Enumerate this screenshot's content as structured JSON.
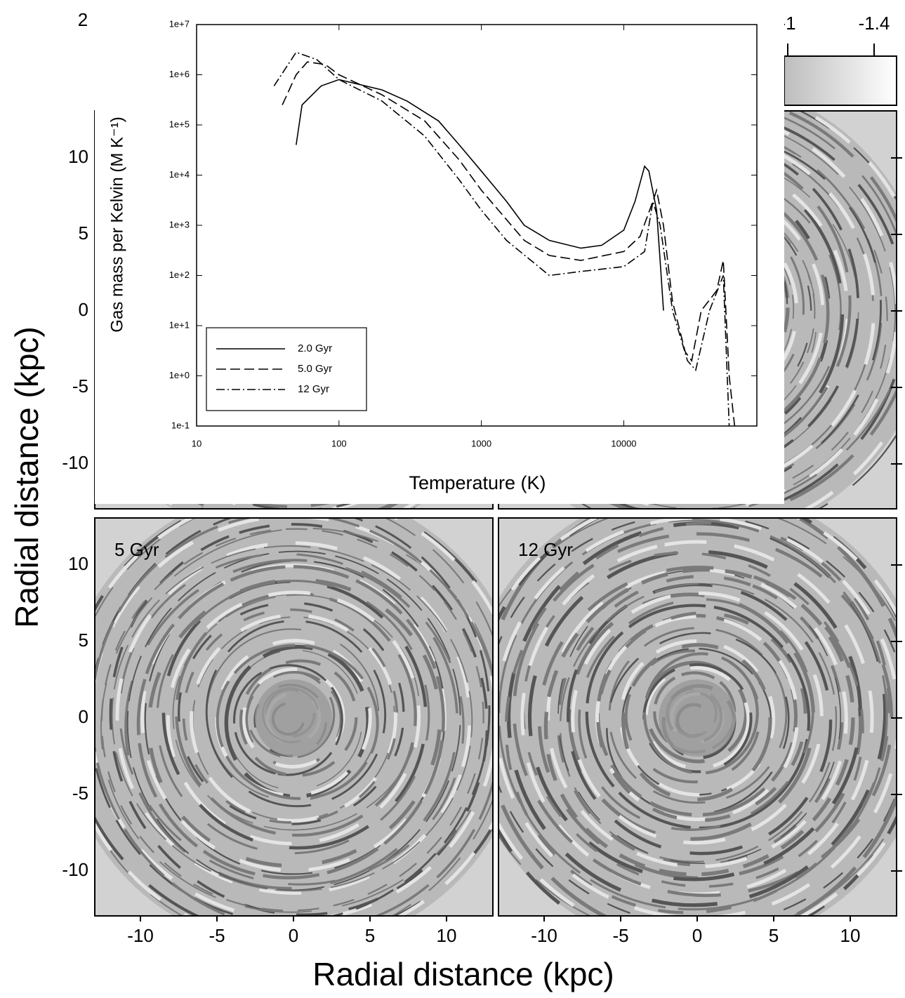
{
  "chart_data": {
    "type": "line",
    "x_label": "Temperature (K)",
    "y_label": "Gas mass per Kelvin (M  K⁻¹)",
    "log_x": true,
    "log_y": true,
    "xlim": [
      10,
      86000
    ],
    "xticks": [
      10,
      100,
      1000,
      10000
    ],
    "ylim": [
      0.1,
      10000000
    ],
    "yticks": [
      {
        "value": 0.1,
        "label": "1e-1"
      },
      {
        "value": 1,
        "label": "1e+0"
      },
      {
        "value": 10,
        "label": "1e+1"
      },
      {
        "value": 100,
        "label": "1e+2"
      },
      {
        "value": 1000,
        "label": "1e+3"
      },
      {
        "value": 10000,
        "label": "1e+4"
      },
      {
        "value": 100000,
        "label": "1e+5"
      },
      {
        "value": 1000000,
        "label": "1e+6"
      },
      {
        "value": 10000000,
        "label": "1e+7"
      }
    ],
    "legend": "lower left",
    "series": [
      {
        "name": "2.0 Gyr",
        "color": "#000000",
        "line_style": "solid",
        "x": [
          50,
          55,
          75,
          100,
          200,
          300,
          500,
          700,
          1000,
          1500,
          2000,
          3000,
          5000,
          7000,
          10000,
          12000,
          14000,
          15000,
          17000,
          18000,
          19000
        ],
        "values": [
          40000,
          250000,
          600000,
          800000,
          500000,
          300000,
          120000,
          40000,
          12000,
          3000,
          1000,
          500,
          350,
          400,
          800,
          3000,
          15000,
          12000,
          2000,
          200,
          20
        ]
      },
      {
        "name": "5.0 Gyr",
        "color": "#000000",
        "line_style": "dashed",
        "x": [
          40,
          50,
          60,
          80,
          100,
          200,
          400,
          700,
          1000,
          2000,
          3000,
          5000,
          10000,
          13000,
          16000,
          17000,
          19000,
          22000,
          27000,
          30000,
          35000,
          45000,
          50000,
          55000,
          60000
        ],
        "values": [
          250000,
          1000000,
          1800000,
          1600000,
          1000000,
          400000,
          120000,
          20000,
          5000,
          500,
          250,
          200,
          300,
          600,
          3000,
          5000,
          1000,
          30,
          3,
          2,
          20,
          50,
          200,
          1,
          0.1
        ]
      },
      {
        "name": "12 Gyr",
        "color": "#000000",
        "line_style": "dashdot",
        "x": [
          35,
          50,
          70,
          100,
          200,
          400,
          700,
          1000,
          1500,
          3000,
          5000,
          10000,
          14000,
          16000,
          18000,
          22000,
          28000,
          32000,
          40000,
          50000,
          55000
        ],
        "values": [
          600000,
          2800000,
          2000000,
          800000,
          300000,
          60000,
          8000,
          2000,
          500,
          100,
          120,
          150,
          300,
          3000,
          1000,
          20,
          2,
          1.3,
          20,
          100,
          0.1
        ]
      }
    ]
  },
  "figure": {
    "panel_number": "2",
    "colorbar_ticks": [
      -1,
      -1.4
    ],
    "y_ticks_top": [
      10,
      5,
      0,
      -5,
      -10
    ],
    "y_ticks_bottom": [
      10,
      5,
      0,
      -5,
      -10
    ],
    "x_ticks": [
      -10,
      -5,
      0,
      5,
      10
    ],
    "panel_labels": [
      "5 Gyr",
      "12 Gyr"
    ],
    "x_label": "Radial distance (kpc)",
    "y_label": "Radial distance (kpc)"
  }
}
